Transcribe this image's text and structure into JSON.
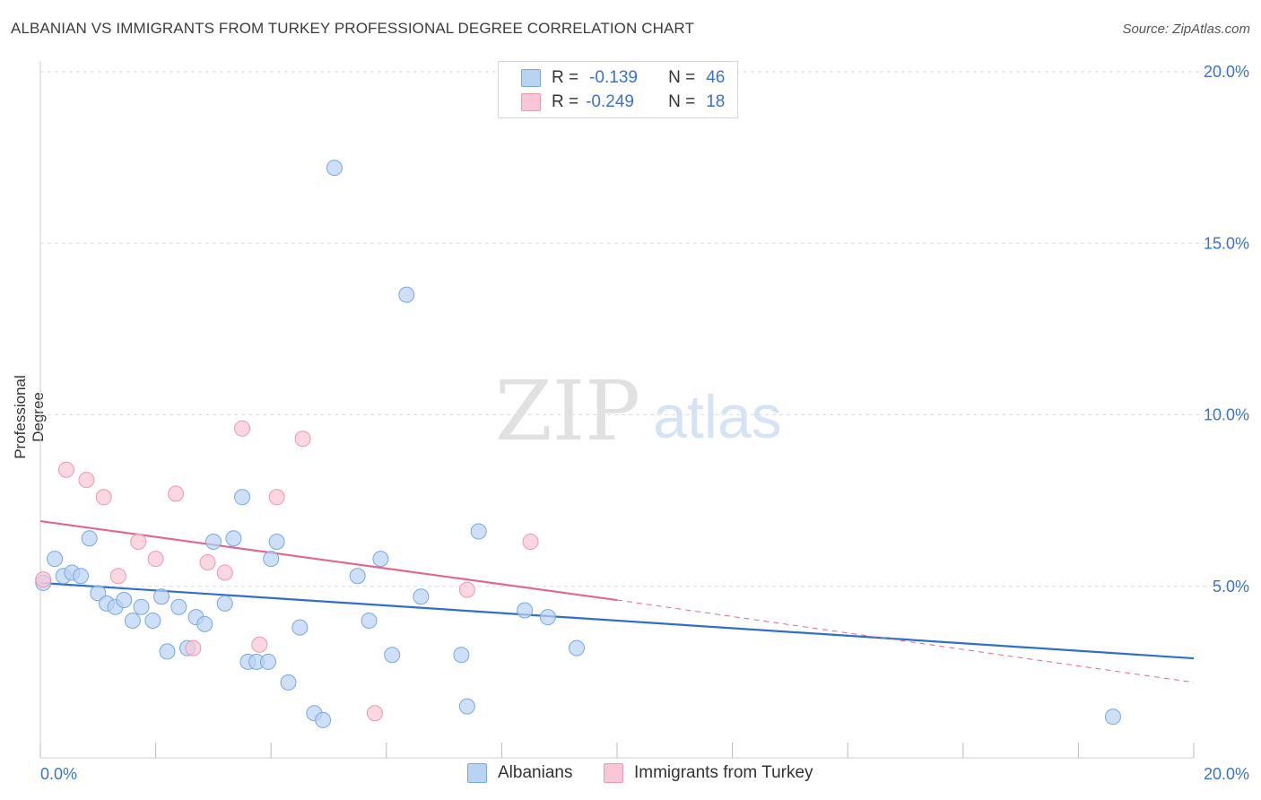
{
  "header": {
    "title": "ALBANIAN VS IMMIGRANTS FROM TURKEY PROFESSIONAL DEGREE CORRELATION CHART",
    "source": "Source: ZipAtlas.com"
  },
  "legend_top": {
    "rows": [
      {
        "r_label": "R =",
        "r_value": "-0.139",
        "n_label": "N =",
        "n_value": "46"
      },
      {
        "r_label": "R =",
        "r_value": "-0.249",
        "n_label": "N =",
        "n_value": "18"
      }
    ]
  },
  "legend_bottom": {
    "items": [
      "Albanians",
      "Immigrants from Turkey"
    ]
  },
  "watermark": {
    "zip": "ZIP",
    "atlas": "atlas"
  },
  "colors": {
    "albanians_fill": "#b9d3f3",
    "albanians_stroke": "#7aa7e0",
    "albanians_line": "#2f6fcb",
    "turkey_fill": "#f8c6d4",
    "turkey_stroke": "#ee97b1",
    "turkey_line": "#e06890",
    "tick_label": "#3a73c8",
    "grid": "#dcdcdc"
  },
  "chart_data": {
    "type": "scatter",
    "title": "ALBANIAN VS IMMIGRANTS FROM TURKEY PROFESSIONAL DEGREE CORRELATION CHART",
    "xlabel": "",
    "ylabel": "Professional Degree",
    "xlim": [
      0,
      20
    ],
    "ylim": [
      0,
      20
    ],
    "x_ticks": [
      "0.0%",
      "20.0%"
    ],
    "y_ticks": [
      "5.0%",
      "10.0%",
      "15.0%",
      "20.0%"
    ],
    "grid": true,
    "series": [
      {
        "name": "Albanians",
        "r": -0.139,
        "n": 46,
        "points": [
          [
            0.05,
            5.1
          ],
          [
            0.25,
            5.8
          ],
          [
            0.4,
            5.3
          ],
          [
            0.55,
            5.4
          ],
          [
            0.7,
            5.3
          ],
          [
            0.85,
            6.4
          ],
          [
            1.0,
            4.8
          ],
          [
            1.15,
            4.5
          ],
          [
            1.3,
            4.4
          ],
          [
            1.45,
            4.6
          ],
          [
            1.6,
            4.0
          ],
          [
            1.75,
            4.4
          ],
          [
            1.95,
            4.0
          ],
          [
            2.1,
            4.7
          ],
          [
            2.2,
            3.1
          ],
          [
            2.4,
            4.4
          ],
          [
            2.55,
            3.2
          ],
          [
            2.7,
            4.1
          ],
          [
            2.85,
            3.9
          ],
          [
            3.0,
            6.3
          ],
          [
            3.2,
            4.5
          ],
          [
            3.35,
            6.4
          ],
          [
            3.5,
            7.6
          ],
          [
            3.6,
            2.8
          ],
          [
            3.75,
            2.8
          ],
          [
            3.95,
            2.8
          ],
          [
            4.0,
            5.8
          ],
          [
            4.1,
            6.3
          ],
          [
            4.3,
            2.2
          ],
          [
            4.5,
            3.8
          ],
          [
            4.75,
            1.3
          ],
          [
            4.9,
            1.1
          ],
          [
            5.1,
            17.2
          ],
          [
            5.5,
            5.3
          ],
          [
            5.7,
            4.0
          ],
          [
            5.9,
            5.8
          ],
          [
            6.1,
            3.0
          ],
          [
            6.35,
            13.5
          ],
          [
            6.6,
            4.7
          ],
          [
            7.3,
            3.0
          ],
          [
            7.4,
            1.5
          ],
          [
            7.6,
            6.6
          ],
          [
            8.4,
            4.3
          ],
          [
            8.8,
            4.1
          ],
          [
            9.3,
            3.2
          ],
          [
            18.6,
            1.2
          ]
        ],
        "trend": {
          "x": [
            0,
            20
          ],
          "y": [
            5.1,
            2.9
          ]
        }
      },
      {
        "name": "Immigrants from Turkey",
        "r": -0.249,
        "n": 18,
        "points": [
          [
            0.05,
            5.2
          ],
          [
            0.45,
            8.4
          ],
          [
            0.8,
            8.1
          ],
          [
            1.1,
            7.6
          ],
          [
            1.35,
            5.3
          ],
          [
            1.7,
            6.3
          ],
          [
            2.0,
            5.8
          ],
          [
            2.35,
            7.7
          ],
          [
            2.65,
            3.2
          ],
          [
            2.9,
            5.7
          ],
          [
            3.2,
            5.4
          ],
          [
            3.5,
            9.6
          ],
          [
            3.8,
            3.3
          ],
          [
            4.1,
            7.6
          ],
          [
            4.55,
            9.3
          ],
          [
            5.8,
            1.3
          ],
          [
            7.4,
            4.9
          ],
          [
            8.5,
            6.3
          ]
        ],
        "trend": {
          "x": [
            0,
            10
          ],
          "y": [
            6.9,
            4.6
          ],
          "dashed_extension": {
            "x": [
              10,
              20
            ],
            "y": [
              4.6,
              2.2
            ]
          }
        }
      }
    ]
  }
}
